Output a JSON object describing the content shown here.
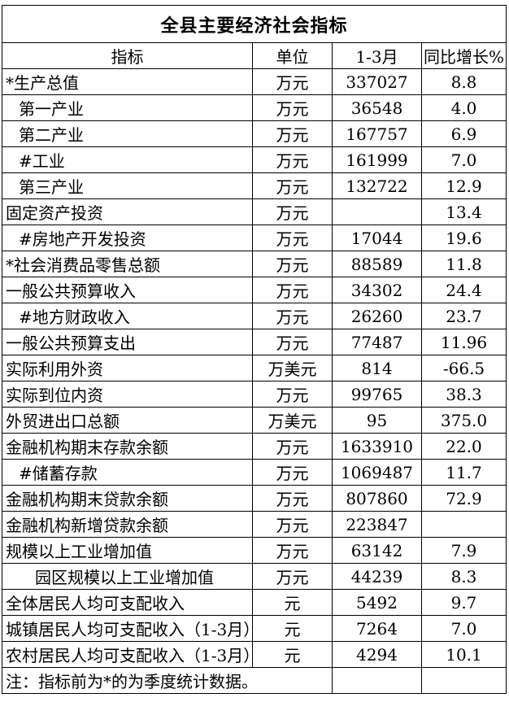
{
  "title": "全县主要经济社会指标",
  "table": {
    "headers": {
      "indicator": "指标",
      "unit": "单位",
      "period": "1-3月",
      "growth": "同比增长%"
    },
    "rows": [
      {
        "indicator": "*生产总值",
        "unit": "万元",
        "value": "337027",
        "growth": "8.8",
        "indent": 0
      },
      {
        "indicator": "第一产业",
        "unit": "万元",
        "value": "36548",
        "growth": "4.0",
        "indent": 1
      },
      {
        "indicator": "第二产业",
        "unit": "万元",
        "value": "167757",
        "growth": "6.9",
        "indent": 1
      },
      {
        "indicator": "#工业",
        "unit": "万元",
        "value": "161999",
        "growth": "7.0",
        "indent": 1
      },
      {
        "indicator": "第三产业",
        "unit": "万元",
        "value": "132722",
        "growth": "12.9",
        "indent": 1
      },
      {
        "indicator": "固定资产投资",
        "unit": "万元",
        "value": "",
        "growth": "13.4",
        "indent": 0
      },
      {
        "indicator": "#房地产开发投资",
        "unit": "万元",
        "value": "17044",
        "growth": "19.6",
        "indent": 1
      },
      {
        "indicator": "*社会消费品零售总额",
        "unit": "万元",
        "value": "88589",
        "growth": "11.8",
        "indent": 0
      },
      {
        "indicator": "一般公共预算收入",
        "unit": "万元",
        "value": "34302",
        "growth": "24.4",
        "indent": 0
      },
      {
        "indicator": "#地方财政收入",
        "unit": "万元",
        "value": "26260",
        "growth": "23.7",
        "indent": 1
      },
      {
        "indicator": "一般公共预算支出",
        "unit": "万元",
        "value": "77487",
        "growth": "11.96",
        "indent": 0
      },
      {
        "indicator": "实际利用外资",
        "unit": "万美元",
        "value": "814",
        "growth": "-66.5",
        "indent": 0
      },
      {
        "indicator": "实际到位内资",
        "unit": "万元",
        "value": "99765",
        "growth": "38.3",
        "indent": 0
      },
      {
        "indicator": "外贸进出口总额",
        "unit": "万美元",
        "value": "95",
        "growth": "375.0",
        "indent": 0
      },
      {
        "indicator": "金融机构期末存款余额",
        "unit": "万元",
        "value": "1633910",
        "growth": "22.0",
        "indent": 0
      },
      {
        "indicator": "#储蓄存款",
        "unit": "万元",
        "value": "1069487",
        "growth": "11.7",
        "indent": 1
      },
      {
        "indicator": "金融机构期末贷款余额",
        "unit": "万元",
        "value": "807860",
        "growth": "72.9",
        "indent": 0
      },
      {
        "indicator": "金融机构新增贷款余额",
        "unit": "万元",
        "value": "223847",
        "growth": "",
        "indent": 0
      },
      {
        "indicator": "规模以上工业增加值",
        "unit": "万元",
        "value": "63142",
        "growth": "7.9",
        "indent": 0
      },
      {
        "indicator": "园区规模以上工业增加值",
        "unit": "万元",
        "value": "44239",
        "growth": "8.3",
        "indent": 2
      },
      {
        "indicator": "全体居民人均可支配收入",
        "unit": "元",
        "value": "5492",
        "growth": "9.7",
        "indent": 0
      },
      {
        "indicator": "城镇居民人均可支配收入（1-3月）",
        "unit": "元",
        "value": "7264",
        "growth": "7.0",
        "indent": 0
      },
      {
        "indicator": "农村居民人均可支配收入（1-3月）",
        "unit": "元",
        "value": "4294",
        "growth": "10.1",
        "indent": 0
      }
    ],
    "note": "注：指标前为*的为季度统计数据。"
  }
}
